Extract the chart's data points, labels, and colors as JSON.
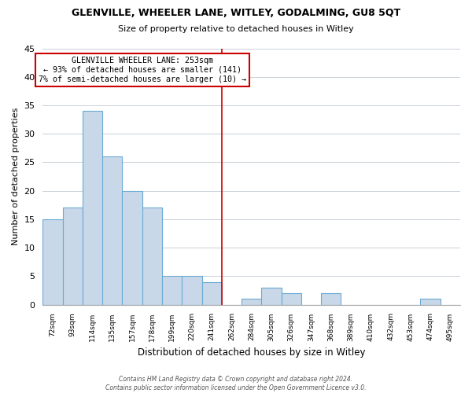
{
  "title": "GLENVILLE, WHEELER LANE, WITLEY, GODALMING, GU8 5QT",
  "subtitle": "Size of property relative to detached houses in Witley",
  "xlabel": "Distribution of detached houses by size in Witley",
  "ylabel": "Number of detached properties",
  "bin_labels": [
    "72sqm",
    "93sqm",
    "114sqm",
    "135sqm",
    "157sqm",
    "178sqm",
    "199sqm",
    "220sqm",
    "241sqm",
    "262sqm",
    "284sqm",
    "305sqm",
    "326sqm",
    "347sqm",
    "368sqm",
    "389sqm",
    "410sqm",
    "432sqm",
    "453sqm",
    "474sqm",
    "495sqm"
  ],
  "bar_heights": [
    15,
    17,
    34,
    26,
    20,
    17,
    5,
    5,
    4,
    0,
    1,
    3,
    2,
    0,
    2,
    0,
    0,
    0,
    0,
    1,
    0
  ],
  "bar_color": "#c8d8e8",
  "bar_edge_color": "#6aaad4",
  "vline_x": 8.5,
  "vline_color": "#cc0000",
  "annotation_title": "GLENVILLE WHEELER LANE: 253sqm",
  "annotation_line1": "← 93% of detached houses are smaller (141)",
  "annotation_line2": "7% of semi-detached houses are larger (10) →",
  "annotation_box_color": "#ffffff",
  "annotation_border_color": "#cc0000",
  "ylim": [
    0,
    45
  ],
  "yticks": [
    0,
    5,
    10,
    15,
    20,
    25,
    30,
    35,
    40,
    45
  ],
  "footer_line1": "Contains HM Land Registry data © Crown copyright and database right 2024.",
  "footer_line2": "Contains public sector information licensed under the Open Government Licence v3.0.",
  "background_color": "#ffffff",
  "grid_color": "#c8d0d8"
}
